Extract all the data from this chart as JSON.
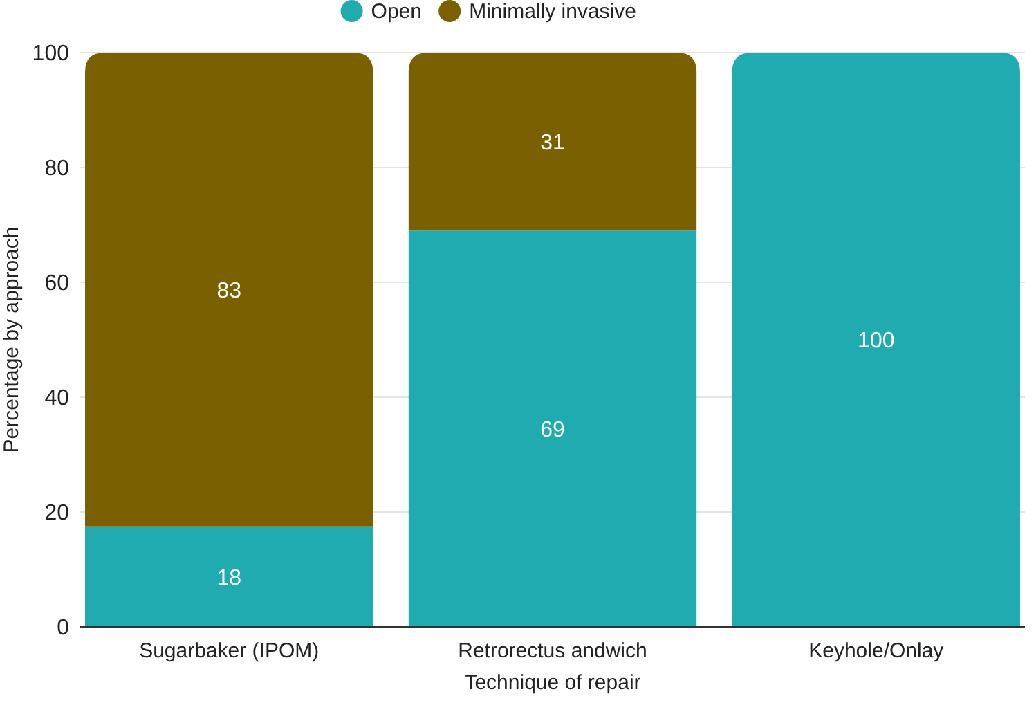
{
  "chart_data": {
    "type": "bar",
    "stacked": true,
    "xlabel": "Technique of repair",
    "ylabel": "Percentage by approach",
    "categories": [
      "Sugarbaker (IPOM)",
      "Retrorectus andwich",
      "Keyhole/Onlay"
    ],
    "series": [
      {
        "name": "Open",
        "color": "#20abb0",
        "values": [
          17.5,
          69,
          100
        ],
        "value_labels": [
          "18",
          "69",
          "100"
        ]
      },
      {
        "name": "Minimally invasive",
        "color": "#7a6000",
        "values": [
          82.5,
          31,
          null
        ],
        "value_labels": [
          "83",
          "31",
          null
        ]
      }
    ],
    "ylim": [
      0,
      100
    ],
    "yticks": [
      0,
      20,
      40,
      60,
      80,
      100
    ],
    "grid": "y",
    "legend": "top"
  }
}
